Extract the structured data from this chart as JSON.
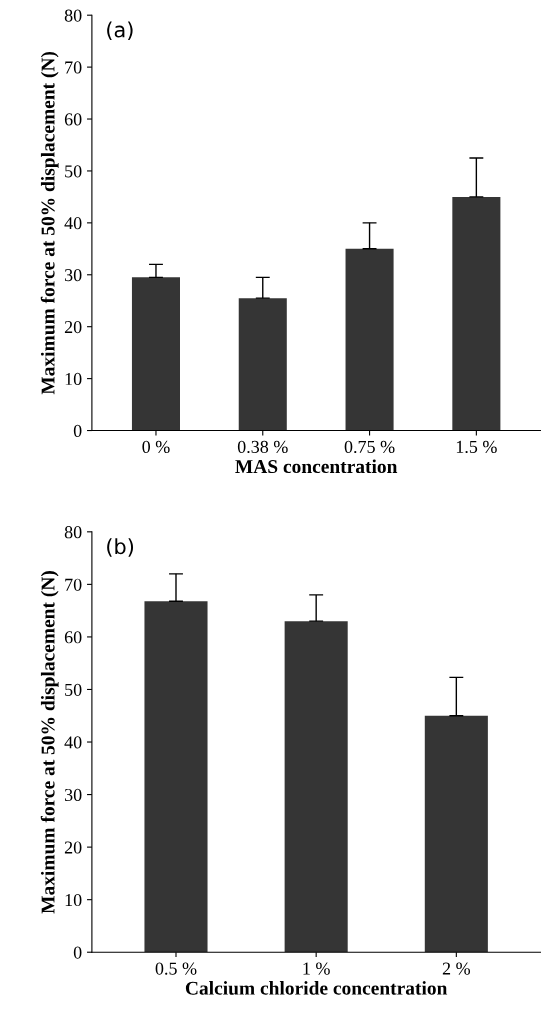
{
  "chart_data": [
    {
      "type": "bar",
      "title": "(a)",
      "xlabel": "MAS concentration",
      "ylabel": "Maximum force at 50% displacement (N)",
      "categories": [
        "0 %",
        "0.38 %",
        "0.75 %",
        "1.5 %"
      ],
      "values": [
        29.5,
        25.5,
        35,
        45
      ],
      "errors": [
        2.5,
        4,
        5,
        7.5
      ],
      "color": "#353535",
      "ylim": [
        0,
        80
      ],
      "yticks": [
        0,
        10,
        20,
        30,
        40,
        50,
        60,
        70,
        80
      ],
      "grid": false,
      "legend": false
    },
    {
      "type": "bar",
      "title": "(b)",
      "xlabel": "Calcium chloride concentration",
      "ylabel": "Maximum force at 50% displacement (N)",
      "categories": [
        "0.5 %",
        "1 %",
        "2 %"
      ],
      "values": [
        66.8,
        63,
        45
      ],
      "errors": [
        5.2,
        5,
        7.3
      ],
      "color": "#353535",
      "ylim": [
        0,
        80
      ],
      "yticks": [
        0,
        10,
        20,
        30,
        40,
        50,
        60,
        70,
        80
      ],
      "grid": false,
      "legend": false
    }
  ]
}
